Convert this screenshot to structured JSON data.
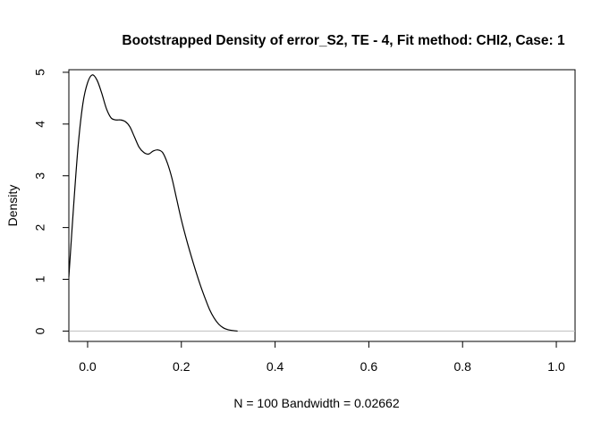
{
  "chart_data": {
    "type": "line",
    "title": "Bootstrapped Density of error_S2, TE - 4, Fit method: CHI2, Case: 1",
    "xlabel": "N = 100   Bandwidth = 0.02662",
    "ylabel": "Density",
    "xlim": [
      -0.04,
      1.04
    ],
    "ylim": [
      -0.2,
      5.05
    ],
    "x_ticks": [
      0.0,
      0.2,
      0.4,
      0.6,
      0.8,
      1.0
    ],
    "x_tick_labels": [
      "0.0",
      "0.2",
      "0.4",
      "0.6",
      "0.8",
      "1.0"
    ],
    "y_ticks": [
      0,
      1,
      2,
      3,
      4,
      5
    ],
    "y_tick_labels": [
      "0",
      "1",
      "2",
      "3",
      "4",
      "5"
    ],
    "baseline_y": 0,
    "series": [
      {
        "name": "density",
        "x": [
          -0.04,
          -0.03,
          -0.02,
          -0.01,
          0.0,
          0.01,
          0.02,
          0.03,
          0.04,
          0.05,
          0.06,
          0.07,
          0.08,
          0.09,
          0.1,
          0.11,
          0.12,
          0.13,
          0.14,
          0.15,
          0.16,
          0.17,
          0.18,
          0.19,
          0.2,
          0.21,
          0.22,
          0.23,
          0.24,
          0.25,
          0.26,
          0.27,
          0.28,
          0.29,
          0.3,
          0.31,
          0.32
        ],
        "y": [
          1.05,
          2.4,
          3.6,
          4.4,
          4.8,
          4.95,
          4.85,
          4.6,
          4.3,
          4.12,
          4.08,
          4.08,
          4.05,
          3.95,
          3.75,
          3.55,
          3.45,
          3.42,
          3.48,
          3.5,
          3.45,
          3.25,
          2.95,
          2.55,
          2.15,
          1.8,
          1.48,
          1.18,
          0.9,
          0.65,
          0.42,
          0.25,
          0.13,
          0.06,
          0.025,
          0.01,
          0.0
        ]
      }
    ],
    "colors": {
      "line": "#000000",
      "baseline": "#bebebe",
      "axis": "#000000"
    }
  }
}
